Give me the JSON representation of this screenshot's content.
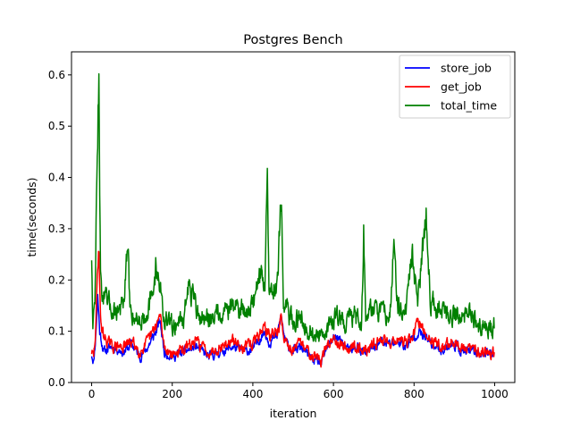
{
  "chart_data": {
    "type": "line",
    "title": "Postgres Bench",
    "xlabel": "iteration",
    "ylabel": "time(seconds)",
    "xlim": [
      -50,
      1050
    ],
    "ylim": [
      0.0,
      0.645
    ],
    "xticks": [
      0,
      200,
      400,
      600,
      800,
      1000
    ],
    "yticks": [
      0.0,
      0.1,
      0.2,
      0.3,
      0.4,
      0.5,
      0.6
    ],
    "xtick_labels": [
      "0",
      "200",
      "400",
      "600",
      "800",
      "1000"
    ],
    "ytick_labels": [
      "0.0",
      "0.1",
      "0.2",
      "0.3",
      "0.4",
      "0.5",
      "0.6"
    ],
    "grid": false,
    "legend_position": "top-right",
    "n_points": 1000,
    "series": [
      {
        "name": "store_job",
        "color": "#0000ff",
        "keypoints": [
          [
            0,
            0.055
          ],
          [
            5,
            0.04
          ],
          [
            10,
            0.09
          ],
          [
            15,
            0.17
          ],
          [
            20,
            0.1
          ],
          [
            30,
            0.06
          ],
          [
            50,
            0.07
          ],
          [
            80,
            0.06
          ],
          [
            100,
            0.075
          ],
          [
            120,
            0.05
          ],
          [
            140,
            0.07
          ],
          [
            160,
            0.1
          ],
          [
            170,
            0.12
          ],
          [
            180,
            0.06
          ],
          [
            200,
            0.05
          ],
          [
            230,
            0.06
          ],
          [
            260,
            0.07
          ],
          [
            290,
            0.05
          ],
          [
            320,
            0.06
          ],
          [
            350,
            0.07
          ],
          [
            380,
            0.06
          ],
          [
            400,
            0.065
          ],
          [
            420,
            0.09
          ],
          [
            430,
            0.1
          ],
          [
            440,
            0.08
          ],
          [
            460,
            0.09
          ],
          [
            470,
            0.13
          ],
          [
            480,
            0.08
          ],
          [
            500,
            0.06
          ],
          [
            520,
            0.07
          ],
          [
            540,
            0.05
          ],
          [
            560,
            0.04
          ],
          [
            570,
            0.035
          ],
          [
            580,
            0.06
          ],
          [
            600,
            0.09
          ],
          [
            620,
            0.08
          ],
          [
            640,
            0.06
          ],
          [
            660,
            0.07
          ],
          [
            680,
            0.055
          ],
          [
            700,
            0.07
          ],
          [
            720,
            0.08
          ],
          [
            740,
            0.075
          ],
          [
            760,
            0.08
          ],
          [
            780,
            0.07
          ],
          [
            800,
            0.09
          ],
          [
            810,
            0.1
          ],
          [
            830,
            0.085
          ],
          [
            850,
            0.07
          ],
          [
            870,
            0.065
          ],
          [
            900,
            0.075
          ],
          [
            920,
            0.06
          ],
          [
            950,
            0.06
          ],
          [
            980,
            0.055
          ],
          [
            999,
            0.06
          ]
        ]
      },
      {
        "name": "get_job",
        "color": "#ff0000",
        "keypoints": [
          [
            0,
            0.06
          ],
          [
            5,
            0.05
          ],
          [
            10,
            0.1
          ],
          [
            15,
            0.23
          ],
          [
            18,
            0.27
          ],
          [
            22,
            0.12
          ],
          [
            30,
            0.09
          ],
          [
            50,
            0.07
          ],
          [
            80,
            0.07
          ],
          [
            100,
            0.08
          ],
          [
            120,
            0.06
          ],
          [
            140,
            0.08
          ],
          [
            160,
            0.11
          ],
          [
            170,
            0.13
          ],
          [
            180,
            0.07
          ],
          [
            200,
            0.055
          ],
          [
            230,
            0.065
          ],
          [
            260,
            0.08
          ],
          [
            290,
            0.06
          ],
          [
            320,
            0.07
          ],
          [
            350,
            0.08
          ],
          [
            380,
            0.07
          ],
          [
            400,
            0.075
          ],
          [
            420,
            0.1
          ],
          [
            430,
            0.11
          ],
          [
            440,
            0.09
          ],
          [
            460,
            0.1
          ],
          [
            470,
            0.12
          ],
          [
            480,
            0.08
          ],
          [
            500,
            0.065
          ],
          [
            520,
            0.075
          ],
          [
            540,
            0.06
          ],
          [
            560,
            0.05
          ],
          [
            570,
            0.04
          ],
          [
            580,
            0.065
          ],
          [
            600,
            0.09
          ],
          [
            620,
            0.075
          ],
          [
            640,
            0.065
          ],
          [
            660,
            0.075
          ],
          [
            680,
            0.06
          ],
          [
            700,
            0.075
          ],
          [
            720,
            0.085
          ],
          [
            740,
            0.08
          ],
          [
            760,
            0.085
          ],
          [
            780,
            0.075
          ],
          [
            800,
            0.095
          ],
          [
            810,
            0.12
          ],
          [
            830,
            0.09
          ],
          [
            850,
            0.08
          ],
          [
            870,
            0.07
          ],
          [
            900,
            0.08
          ],
          [
            920,
            0.065
          ],
          [
            950,
            0.065
          ],
          [
            980,
            0.06
          ],
          [
            999,
            0.06
          ]
        ]
      },
      {
        "name": "total_time",
        "color": "#008000",
        "keypoints": [
          [
            0,
            0.25
          ],
          [
            3,
            0.12
          ],
          [
            8,
            0.15
          ],
          [
            12,
            0.36
          ],
          [
            15,
            0.45
          ],
          [
            18,
            0.62
          ],
          [
            22,
            0.2
          ],
          [
            28,
            0.17
          ],
          [
            40,
            0.15
          ],
          [
            60,
            0.14
          ],
          [
            80,
            0.15
          ],
          [
            90,
            0.27
          ],
          [
            95,
            0.14
          ],
          [
            120,
            0.12
          ],
          [
            150,
            0.16
          ],
          [
            160,
            0.23
          ],
          [
            170,
            0.19
          ],
          [
            180,
            0.12
          ],
          [
            200,
            0.11
          ],
          [
            230,
            0.13
          ],
          [
            240,
            0.19
          ],
          [
            260,
            0.14
          ],
          [
            280,
            0.12
          ],
          [
            300,
            0.13
          ],
          [
            320,
            0.14
          ],
          [
            350,
            0.15
          ],
          [
            380,
            0.14
          ],
          [
            400,
            0.15
          ],
          [
            415,
            0.21
          ],
          [
            430,
            0.2
          ],
          [
            436,
            0.41
          ],
          [
            440,
            0.18
          ],
          [
            460,
            0.19
          ],
          [
            470,
            0.375
          ],
          [
            476,
            0.15
          ],
          [
            490,
            0.13
          ],
          [
            500,
            0.12
          ],
          [
            520,
            0.13
          ],
          [
            540,
            0.1
          ],
          [
            560,
            0.09
          ],
          [
            575,
            0.08
          ],
          [
            590,
            0.12
          ],
          [
            610,
            0.13
          ],
          [
            630,
            0.12
          ],
          [
            650,
            0.13
          ],
          [
            670,
            0.12
          ],
          [
            675,
            0.3
          ],
          [
            680,
            0.13
          ],
          [
            700,
            0.15
          ],
          [
            720,
            0.13
          ],
          [
            740,
            0.14
          ],
          [
            750,
            0.27
          ],
          [
            760,
            0.14
          ],
          [
            780,
            0.15
          ],
          [
            795,
            0.25
          ],
          [
            810,
            0.16
          ],
          [
            830,
            0.34
          ],
          [
            840,
            0.16
          ],
          [
            860,
            0.15
          ],
          [
            880,
            0.13
          ],
          [
            900,
            0.14
          ],
          [
            920,
            0.12
          ],
          [
            940,
            0.14
          ],
          [
            950,
            0.12
          ],
          [
            970,
            0.11
          ],
          [
            985,
            0.1
          ],
          [
            999,
            0.115
          ]
        ]
      }
    ]
  }
}
